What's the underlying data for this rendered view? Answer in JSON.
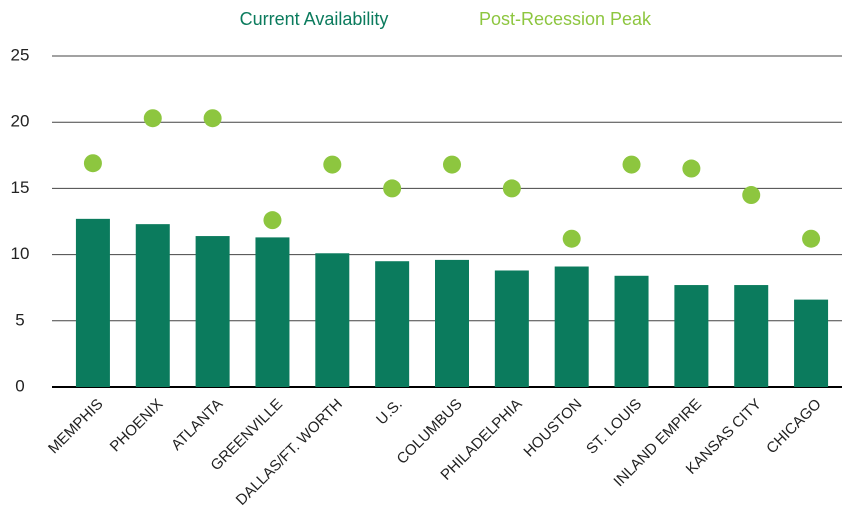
{
  "chart_data": {
    "type": "bar",
    "categories": [
      "MEMPHIS",
      "PHOENIX",
      "ATLANTA",
      "GREENVILLE",
      "DALLAS/FT. WORTH",
      "U.S.",
      "COLUMBUS",
      "PHILADELPHIA",
      "HOUSTON",
      "ST. LOUIS",
      "INLAND EMPIRE",
      "KANSAS CITY",
      "CHICAGO"
    ],
    "series": [
      {
        "name": "Current Availability",
        "type": "bar",
        "color": "#0b7b5d",
        "values": [
          12.7,
          12.3,
          11.4,
          11.3,
          10.1,
          9.5,
          9.6,
          8.8,
          9.1,
          8.4,
          7.7,
          7.7,
          6.6
        ]
      },
      {
        "name": "Post-Recession Peak",
        "type": "scatter",
        "color": "#8dc63f",
        "values": [
          16.9,
          20.3,
          20.3,
          12.6,
          16.8,
          15.0,
          16.8,
          15.0,
          11.2,
          16.8,
          16.5,
          14.5,
          11.2
        ]
      }
    ],
    "ylim": [
      0,
      25
    ],
    "yticks": [
      0,
      5,
      10,
      15,
      20,
      25
    ],
    "grid": true,
    "legend": "top"
  }
}
